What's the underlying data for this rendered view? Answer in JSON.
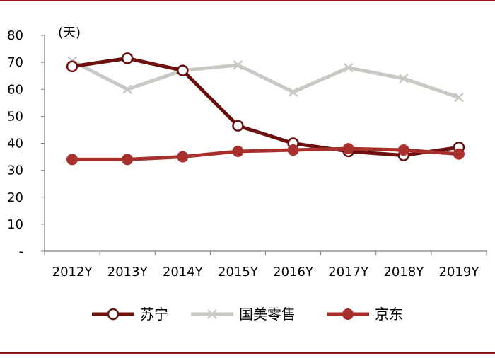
{
  "chart_data": {
    "type": "line",
    "unit_label": "(天)",
    "categories": [
      "2012Y",
      "2013Y",
      "2014Y",
      "2015Y",
      "2016Y",
      "2017Y",
      "2018Y",
      "2019Y"
    ],
    "y_ticks": [
      "-",
      "10",
      "20",
      "30",
      "40",
      "50",
      "60",
      "70",
      "80"
    ],
    "ylim": [
      0,
      80
    ],
    "grid": false,
    "legend_position": "bottom",
    "series": [
      {
        "name": "苏宁",
        "values": [
          68.5,
          71.5,
          67,
          46.5,
          40,
          37,
          35.5,
          38.5
        ],
        "color": "#6b0f0f",
        "marker": "hollow-circle"
      },
      {
        "name": "国美零售",
        "values": [
          70.5,
          60,
          67,
          69,
          59,
          68,
          64,
          57
        ],
        "color": "#c8c9c3",
        "marker": "x"
      },
      {
        "name": "京东",
        "values": [
          34,
          34,
          35,
          37,
          37.5,
          38,
          37.5,
          36
        ],
        "color": "#a8302c",
        "marker": "filled-circle"
      }
    ]
  }
}
